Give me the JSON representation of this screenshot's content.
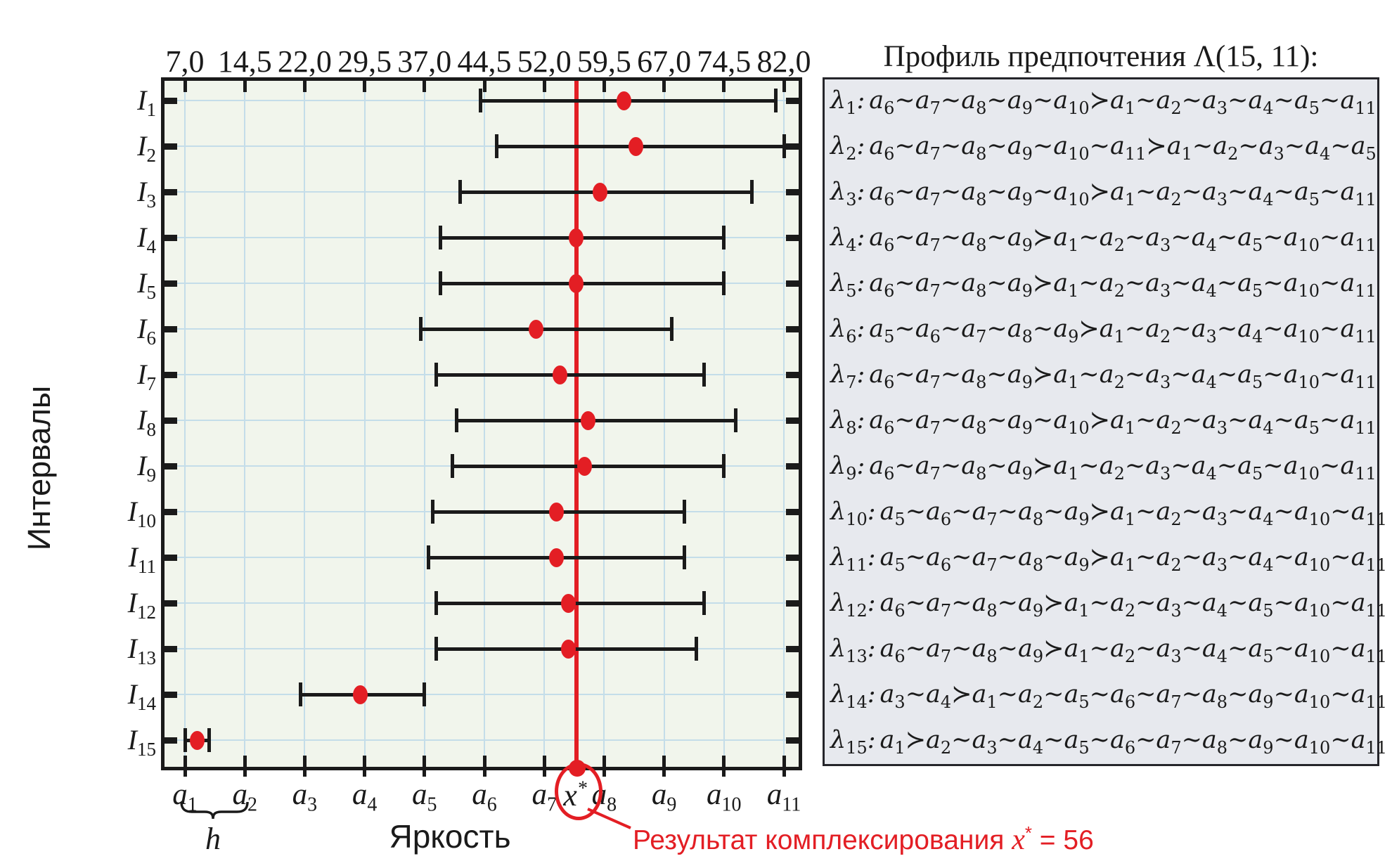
{
  "profile": {
    "title": "Профиль предпочтения Λ(15, 11):",
    "lines": [
      {
        "name": "λ1",
        "expr": "a6∼a7∼a8∼a9∼a10≻a1∼a2∼a3∼a4∼a5∼a11"
      },
      {
        "name": "λ2",
        "expr": "a6∼a7∼a8∼a9∼a10∼a11≻a1∼a2∼a3∼a4∼a5"
      },
      {
        "name": "λ3",
        "expr": "a6∼a7∼a8∼a9∼a10≻a1∼a2∼a3∼a4∼a5∼a11"
      },
      {
        "name": "λ4",
        "expr": "a6∼a7∼a8∼a9≻a1∼a2∼a3∼a4∼a5∼a10∼a11"
      },
      {
        "name": "λ5",
        "expr": "a6∼a7∼a8∼a9≻a1∼a2∼a3∼a4∼a5∼a10∼a11"
      },
      {
        "name": "λ6",
        "expr": "a5∼a6∼a7∼a8∼a9≻a1∼a2∼a3∼a4∼a10∼a11"
      },
      {
        "name": "λ7",
        "expr": "a6∼a7∼a8∼a9≻a1∼a2∼a3∼a4∼a5∼a10∼a11"
      },
      {
        "name": "λ8",
        "expr": "a6∼a7∼a8∼a9∼a10≻a1∼a2∼a3∼a4∼a5∼a11"
      },
      {
        "name": "λ9",
        "expr": "a6∼a7∼a8∼a9≻a1∼a2∼a3∼a4∼a5∼a10∼a11"
      },
      {
        "name": "λ10",
        "expr": "a5∼a6∼a7∼a8∼a9≻a1∼a2∼a3∼a4∼a10∼a11"
      },
      {
        "name": "λ11",
        "expr": "a5∼a6∼a7∼a8∼a9≻a1∼a2∼a3∼a4∼a10∼a11"
      },
      {
        "name": "λ12",
        "expr": "a6∼a7∼a8∼a9≻a1∼a2∼a3∼a4∼a5∼a10∼a11"
      },
      {
        "name": "λ13",
        "expr": "a6∼a7∼a8∼a9≻a1∼a2∼a3∼a4∼a5∼a10∼a11"
      },
      {
        "name": "λ14",
        "expr": "a3∼a4≻a1∼a2∼a5∼a6∼a7∼a8∼a9∼a10∼a11"
      },
      {
        "name": "λ15",
        "expr": "a1≻a2∼a3∼a4∼a5∼a6∼a7∼a8∼a9∼a10∼a11"
      }
    ]
  },
  "axis": {
    "x_title": "Яркость",
    "y_title": "Интервалы",
    "h_label": "h",
    "x_star_base": "x",
    "x_star_sup": "*",
    "top_tick_labels": [
      "7,0",
      "14,5",
      "22,0",
      "29,5",
      "37,0",
      "44,5",
      "52,0",
      "59,5",
      "67,0",
      "74,5",
      "82,0"
    ],
    "bottom_tick_labels": [
      "a1",
      "a2",
      "a3",
      "a4",
      "a5",
      "a6",
      "a7",
      "a8",
      "a9",
      "a10",
      "a11"
    ]
  },
  "annotation": {
    "text": "Результат комплексирования ",
    "x_base": "x",
    "x_sup": "*",
    "value": " = 56"
  },
  "chart_data": {
    "type": "interval-errorbar",
    "title": "Профиль предпочтения Λ(15, 11)",
    "xlabel": "Яркость",
    "ylabel": "Интервалы",
    "x_ticks": [
      7.0,
      14.5,
      22.0,
      29.5,
      37.0,
      44.5,
      52.0,
      59.5,
      67.0,
      74.5,
      82.0
    ],
    "x_tick_names": [
      "a1",
      "a2",
      "a3",
      "a4",
      "a5",
      "a6",
      "a7",
      "a8",
      "a9",
      "a10",
      "a11"
    ],
    "xlim": [
      7.0,
      82.0
    ],
    "grid": true,
    "x_star": 56,
    "h_step": 7.5,
    "rows": [
      {
        "label": "I1",
        "low": 44.0,
        "high": 81.0,
        "point": 62.0
      },
      {
        "label": "I2",
        "low": 46.0,
        "high": 82.0,
        "point": 63.5
      },
      {
        "label": "I3",
        "low": 41.5,
        "high": 78.0,
        "point": 59.0
      },
      {
        "label": "I4",
        "low": 39.0,
        "high": 74.5,
        "point": 56.0
      },
      {
        "label": "I5",
        "low": 39.0,
        "high": 74.5,
        "point": 56.0
      },
      {
        "label": "I6",
        "low": 36.5,
        "high": 68.0,
        "point": 51.0
      },
      {
        "label": "I7",
        "low": 38.5,
        "high": 72.0,
        "point": 54.0
      },
      {
        "label": "I8",
        "low": 41.0,
        "high": 76.0,
        "point": 57.5
      },
      {
        "label": "I9",
        "low": 40.5,
        "high": 74.5,
        "point": 57.0
      },
      {
        "label": "I10",
        "low": 38.0,
        "high": 69.5,
        "point": 53.5
      },
      {
        "label": "I11",
        "low": 37.5,
        "high": 69.5,
        "point": 53.5
      },
      {
        "label": "I12",
        "low": 38.5,
        "high": 72.0,
        "point": 55.0
      },
      {
        "label": "I13",
        "low": 38.5,
        "high": 71.0,
        "point": 55.0
      },
      {
        "label": "I14",
        "low": 21.5,
        "high": 37.0,
        "point": 29.0
      },
      {
        "label": "I15",
        "low": 7.0,
        "high": 10.0,
        "point": 8.5
      }
    ]
  },
  "colors": {
    "accent_red": "#e31e24",
    "grid_blue": "#c4dde9",
    "plot_bg": "#f1f5ec",
    "panel_bg": "#e7e9ee",
    "ink": "#1a1a1a"
  }
}
